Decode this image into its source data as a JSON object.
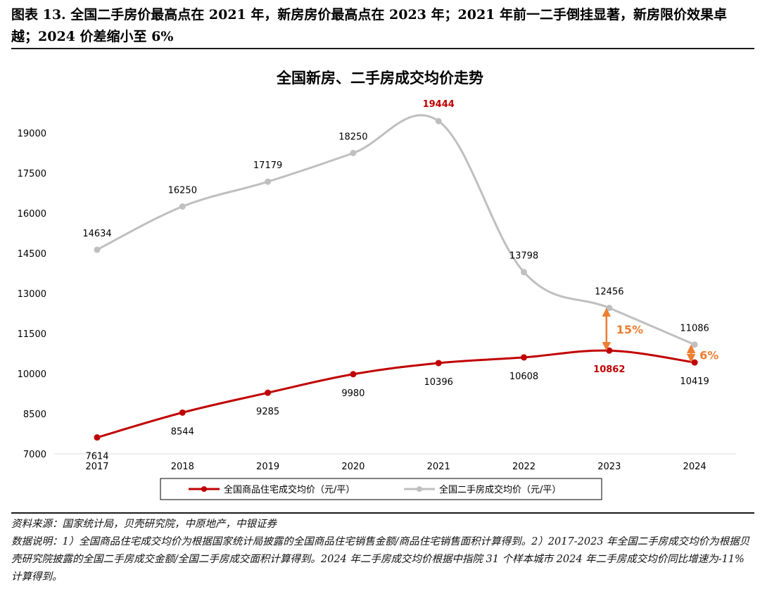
{
  "figure": {
    "title": "图表 13. 全国二手房价最高点在 2021 年，新房房价最高点在 2023 年；2021 年前一二手倒挂显著，新房限价效果卓越；2024 价差缩小至 6%"
  },
  "chart_data": {
    "type": "line",
    "title": "全国新房、二手房成交均价走势",
    "xlabel": "",
    "ylabel": "",
    "categories": [
      "2017",
      "2018",
      "2019",
      "2020",
      "2021",
      "2022",
      "2023",
      "2024"
    ],
    "ylim": [
      7000,
      20500
    ],
    "yticks": [
      7000,
      8500,
      10000,
      11500,
      13000,
      14500,
      16000,
      17500,
      19000
    ],
    "series": [
      {
        "name": "全国商品住宅成交均价（元/平）",
        "color": "#c00000",
        "values": [
          7614,
          8544,
          9285,
          9980,
          10396,
          10608,
          10862,
          10419
        ],
        "highlight_index": 6
      },
      {
        "name": "全国二手房成交均价（元/平）",
        "color": "#bfbfbf",
        "values": [
          14634,
          16250,
          17179,
          18250,
          19444,
          13798,
          12456,
          11086
        ],
        "highlight_index": 4
      }
    ],
    "annotations": [
      {
        "text": "15%",
        "category": "2023",
        "from": 10862,
        "to": 12456,
        "color": "#ed7d31"
      },
      {
        "text": "6%",
        "category": "2024",
        "from": 10419,
        "to": 11086,
        "color": "#ed7d31"
      }
    ],
    "legend_position": "bottom-center",
    "grid": false
  },
  "notes": {
    "source": "资料来源：国家统计局，贝壳研究院，中原地产，中银证券",
    "explanation": "数据说明：1）全国商品住宅成交均价为根据国家统计局披露的全国商品住宅销售金额/商品住宅销售面积计算得到。2）2017-2023 年全国二手房成交均价为根据贝壳研究院披露的全国二手房成交金额/全国二手房成交面积计算得到。2024 年二手房成交均价根据中指院 31 个样本城市 2024 年二手房成交均价同比增速为-11%计算得到。"
  }
}
